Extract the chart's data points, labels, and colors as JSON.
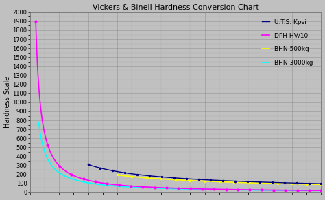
{
  "title": "Vickers & Binell Hardness Conversion Chart",
  "ylabel": "Hardness Scale",
  "ylim": [
    0,
    2000
  ],
  "xlim": [
    0,
    100
  ],
  "yticks": [
    0,
    100,
    200,
    300,
    400,
    500,
    600,
    700,
    800,
    900,
    1000,
    1100,
    1200,
    1300,
    1400,
    1500,
    1600,
    1700,
    1800,
    1900,
    2000
  ],
  "background_color": "#c0c0c0",
  "plot_bg_color": "#c0c0c0",
  "grid_color": "#888888",
  "title_fontsize": 8,
  "ylabel_fontsize": 7,
  "tick_fontsize": 6,
  "legend_fontsize": 6.5,
  "series": {
    "uts": {
      "label": "U.T.S. Kpsi",
      "color": "#000080",
      "lw": 1.0
    },
    "dph": {
      "label": "DPH HV/10",
      "color": "#FF00FF",
      "lw": 1.2
    },
    "bhn500": {
      "label": "BHN 500kg",
      "color": "#FFFF00",
      "lw": 1.2
    },
    "bhn3000": {
      "label": "BHN 3000kg",
      "color": "#00FFFF",
      "lw": 1.2
    }
  }
}
